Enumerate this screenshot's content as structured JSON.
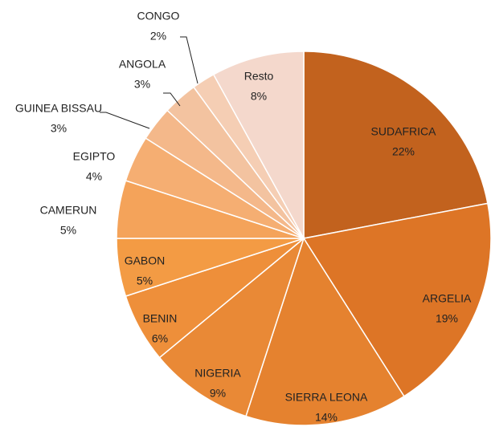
{
  "chart_data": {
    "type": "pie",
    "categories": [
      "SUDAFRICA",
      "ARGELIA",
      "SIERRA LEONA",
      "NIGERIA",
      "BENIN",
      "GABON",
      "CAMERUN",
      "EGIPTO",
      "GUINEA BISSAU",
      "ANGOLA",
      "CONGO",
      "Resto"
    ],
    "values": [
      22,
      19,
      14,
      9,
      6,
      5,
      5,
      4,
      3,
      3,
      2,
      8
    ],
    "value_labels": [
      "22%",
      "19%",
      "14%",
      "9%",
      "6%",
      "5%",
      "5%",
      "4%",
      "3%",
      "3%",
      "2%",
      "8%"
    ],
    "colors": [
      "#c2621e",
      "#dd7526",
      "#e5822f",
      "#e98936",
      "#ee8f3a",
      "#f39b44",
      "#f4a35a",
      "#f5ae72",
      "#f4b88a",
      "#f3c3a0",
      "#f5ceb4",
      "#f4d8cc"
    ]
  }
}
